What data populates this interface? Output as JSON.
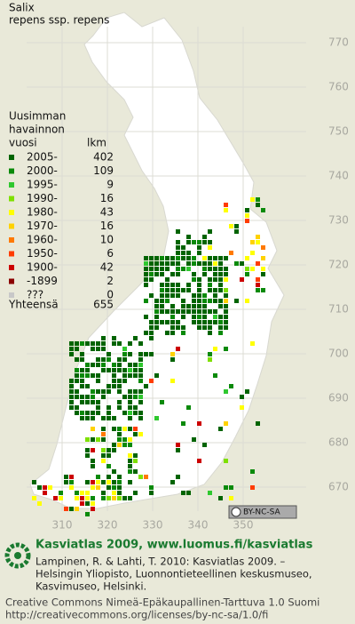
{
  "map": {
    "title": "Salix",
    "subtitle": "repens ssp. repens",
    "legend": {
      "heading": [
        "Uusimman",
        "havainnon",
        "vuosi"
      ],
      "count_header": "lkm",
      "rows": [
        {
          "label": "2005-",
          "count": 402,
          "color": "#006400"
        },
        {
          "label": "2000-",
          "count": 109,
          "color": "#0a8a0a"
        },
        {
          "label": "1995-",
          "count": 9,
          "color": "#2fc82f"
        },
        {
          "label": "1990-",
          "count": 16,
          "color": "#7ee000"
        },
        {
          "label": "1980-",
          "count": 43,
          "color": "#ffff00"
        },
        {
          "label": "1970-",
          "count": 16,
          "color": "#ffd200"
        },
        {
          "label": "1960-",
          "count": 10,
          "color": "#ff7a00"
        },
        {
          "label": "1950-",
          "count": 6,
          "color": "#ff3c00"
        },
        {
          "label": "1900-",
          "count": 42,
          "color": "#cc0000"
        },
        {
          "label": "-1899",
          "count": 2,
          "color": "#8b0000"
        },
        {
          "label": "???",
          "count": 0,
          "color": "#c8c8c8"
        }
      ],
      "total": {
        "label": "Yhteensä",
        "count": 655
      }
    },
    "north_ticks": [
      770,
      760,
      750,
      740,
      730,
      720,
      710,
      700,
      690,
      680,
      670
    ],
    "east_ticks": [
      310,
      320,
      330,
      340,
      350
    ]
  },
  "footer": {
    "license_badge": "BY-NC-SA",
    "brand": "Kasviatlas 2009, www.luomus.fi/kasviatlas",
    "citation": [
      "Lampinen, R. & Lahti, T. 2010: Kasviatlas 2009. –",
      "Helsingin Yliopisto, Luonnontieteellinen keskusmuseo,",
      "Kasvimuseo, Helsinki."
    ],
    "license": [
      "Creative Commons Nimeä-Epäkaupallinen-Tarttuva 1.0 Suomi",
      "http://creativecommons.org/licenses/by-nc-sa/1.0/fi"
    ]
  }
}
